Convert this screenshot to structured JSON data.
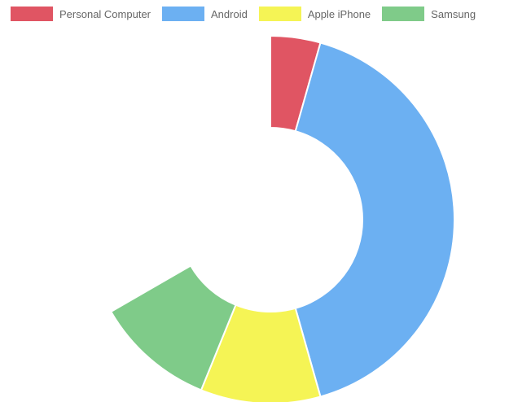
{
  "chart_data": {
    "type": "pie",
    "variant": "doughnut-half",
    "categories": [
      "Personal Computer",
      "Android",
      "Apple iPhone",
      "Samsung"
    ],
    "values": [
      5,
      47,
      12,
      12
    ],
    "colors": [
      "#E05563",
      "#6CB0F2",
      "#F5F455",
      "#7FCB89"
    ],
    "legend_position": "top",
    "start_angle_deg": 0,
    "total_sweep_deg": 240
  }
}
